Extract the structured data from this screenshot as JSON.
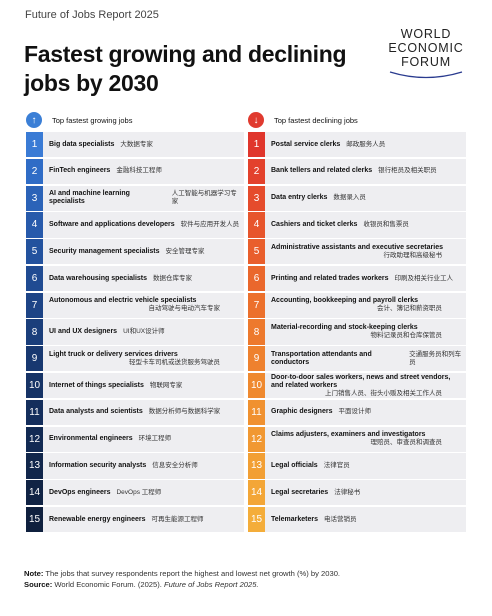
{
  "report_title": "Future of Jobs Report 2025",
  "headline": "Fastest growing and declining jobs by 2030",
  "logo": [
    "WORLD",
    "ECONOMIC",
    "FORUM"
  ],
  "colors": {
    "growing_accent": "#3b7fd6",
    "declining_accent": "#e03a2f",
    "growing_badges": [
      "#3a7bd5",
      "#2f6cc6",
      "#2b63b8",
      "#275aab",
      "#23529e",
      "#204b92",
      "#1d4486",
      "#1a3e7b",
      "#183870",
      "#163366",
      "#142e5c",
      "#122a53",
      "#11264b",
      "#102344",
      "#0f203e"
    ],
    "declining_badges": [
      "#e0362c",
      "#e3412c",
      "#e54b2c",
      "#e7552c",
      "#e95e2c",
      "#ea672c",
      "#ec702c",
      "#ed792d",
      "#ee812e",
      "#ef892f",
      "#f09130",
      "#f19832",
      "#f29f34",
      "#f3a637",
      "#f4ad3a"
    ]
  },
  "growing": {
    "header": "Top fastest growing jobs",
    "arrow_icon": "arrow-up-icon",
    "items": [
      {
        "rank": "1",
        "en": "Big data specialists",
        "zh": "大数据专家"
      },
      {
        "rank": "2",
        "en": "FinTech engineers",
        "zh": "金融科技工程师"
      },
      {
        "rank": "3",
        "en": "AI and machine learning specialists",
        "zh": "人工智能与机器学习专家"
      },
      {
        "rank": "4",
        "en": "Software and applications developers",
        "zh": "软件与应用开发人员"
      },
      {
        "rank": "5",
        "en": "Security management specialists",
        "zh": "安全管理专家"
      },
      {
        "rank": "6",
        "en": "Data warehousing specialists",
        "zh": "数据仓库专家"
      },
      {
        "rank": "7",
        "en": "Autonomous and electric vehicle specialists",
        "zh": "自动驾驶与电动汽车专家"
      },
      {
        "rank": "8",
        "en": "UI and UX designers",
        "zh": "UI和UX设计师"
      },
      {
        "rank": "9",
        "en": "Light truck or delivery services drivers",
        "zh": "轻型卡车司机或送货服务驾驶员"
      },
      {
        "rank": "10",
        "en": "Internet of things specialists",
        "zh": "物联网专家"
      },
      {
        "rank": "11",
        "en": "Data analysts and scientists",
        "zh": "数据分析师与数据科学家"
      },
      {
        "rank": "12",
        "en": "Environmental engineers",
        "zh": "环境工程师"
      },
      {
        "rank": "13",
        "en": "Information security analysts",
        "zh": "信息安全分析师"
      },
      {
        "rank": "14",
        "en": "DevOps engineers",
        "zh": "DevOps 工程师"
      },
      {
        "rank": "15",
        "en": "Renewable energy engineers",
        "zh": "可再生能源工程师"
      }
    ]
  },
  "declining": {
    "header": "Top fastest declining jobs",
    "arrow_icon": "arrow-down-icon",
    "items": [
      {
        "rank": "1",
        "en": "Postal service clerks",
        "zh": "邮政服务人员"
      },
      {
        "rank": "2",
        "en": "Bank tellers and related clerks",
        "zh": "银行柜员及相关职员"
      },
      {
        "rank": "3",
        "en": "Data entry clerks",
        "zh": "数据录入员"
      },
      {
        "rank": "4",
        "en": "Cashiers and ticket clerks",
        "zh": "收银员和售票员"
      },
      {
        "rank": "5",
        "en": "Administrative assistants and executive secretaries",
        "zh": "行政助理和高级秘书"
      },
      {
        "rank": "6",
        "en": "Printing and related trades workers",
        "zh": "印刷及相关行业工人"
      },
      {
        "rank": "7",
        "en": "Accounting, bookkeeping and payroll clerks",
        "zh": "会计、簿记和薪资职员"
      },
      {
        "rank": "8",
        "en": "Material-recording and stock-keeping clerks",
        "zh": "物料记录员和仓库保管员"
      },
      {
        "rank": "9",
        "en": "Transportation attendants and conductors",
        "zh": "交通服务员和列车员"
      },
      {
        "rank": "10",
        "en": "Door-to-door sales workers, news and street vendors, and related workers",
        "zh": "上门销售人员、街头小贩及相关工作人员"
      },
      {
        "rank": "11",
        "en": "Graphic designers",
        "zh": "平面设计师"
      },
      {
        "rank": "12",
        "en": "Claims adjusters, examiners and investigators",
        "zh": "理赔员、审查员和调查员"
      },
      {
        "rank": "13",
        "en": "Legal officials",
        "zh": "法律官员"
      },
      {
        "rank": "14",
        "en": "Legal secretaries",
        "zh": "法律秘书"
      },
      {
        "rank": "15",
        "en": "Telemarketers",
        "zh": "电话营销员"
      }
    ]
  },
  "note": {
    "label": "Note:",
    "text": "The jobs that survey respondents report the highest and lowest net growth (%) by 2030."
  },
  "source": {
    "label": "Source:",
    "text": "World Economic Forum. (2025).",
    "title": "Future of Jobs Report 2025."
  }
}
